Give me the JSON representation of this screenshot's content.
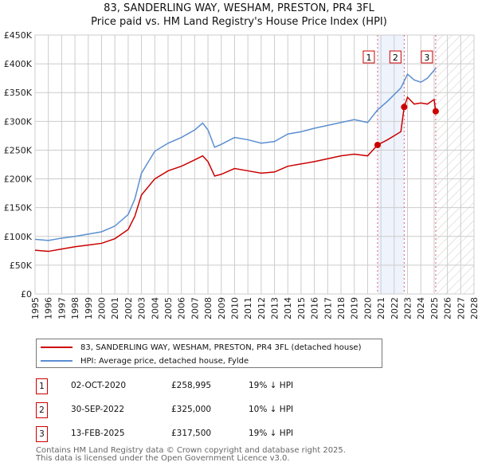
{
  "chart_data": {
    "type": "line",
    "title": "83, SANDERLING WAY, WESHAM, PRESTON, PR4 3FL",
    "subtitle": "Price paid vs. HM Land Registry's House Price Index (HPI)",
    "xlim": [
      1995,
      2028
    ],
    "ylim": [
      0,
      450000
    ],
    "yticks": [
      0,
      50000,
      100000,
      150000,
      200000,
      250000,
      300000,
      350000,
      400000,
      450000
    ],
    "ytick_labels": [
      "£0",
      "£50K",
      "£100K",
      "£150K",
      "£200K",
      "£250K",
      "£300K",
      "£350K",
      "£400K",
      "£450K"
    ],
    "xticks": [
      "1995",
      "1996",
      "1997",
      "1998",
      "1999",
      "2000",
      "2001",
      "2002",
      "2003",
      "2004",
      "2005",
      "2006",
      "2007",
      "2008",
      "2009",
      "2010",
      "2011",
      "2012",
      "2013",
      "2014",
      "2015",
      "2016",
      "2017",
      "2018",
      "2019",
      "2020",
      "2021",
      "2022",
      "2023",
      "2024",
      "2025",
      "2026",
      "2027",
      "2028"
    ],
    "grid": true,
    "series": [
      {
        "name": "83, SANDERLING WAY, WESHAM, PRESTON, PR4 3FL (detached house)",
        "color": "#cc0000",
        "x": [
          1995,
          1996,
          1997,
          1998,
          1999,
          2000,
          2001,
          2002,
          2002.5,
          2003,
          2004,
          2005,
          2006,
          2007,
          2007.6,
          2008,
          2008.5,
          2009,
          2010,
          2011,
          2012,
          2013,
          2014,
          2015,
          2016,
          2017,
          2018,
          2019,
          2020,
          2020.75,
          2021.5,
          2022.5,
          2022.75,
          2023,
          2023.5,
          2024,
          2024.5,
          2025.0,
          2025.12
        ],
        "y": [
          76000,
          74000,
          78000,
          82000,
          85000,
          88000,
          96000,
          112000,
          135000,
          172000,
          200000,
          214000,
          222000,
          233000,
          240000,
          230000,
          205000,
          208000,
          218000,
          214000,
          210000,
          212000,
          222000,
          226000,
          230000,
          235000,
          240000,
          243000,
          240000,
          258995,
          268000,
          282000,
          325000,
          342000,
          330000,
          332000,
          330000,
          338000,
          317500
        ]
      },
      {
        "name": "HPI: Average price, detached house, Fylde",
        "color": "#5b8fd0",
        "x": [
          1995,
          1996,
          1997,
          1998,
          1999,
          2000,
          2001,
          2002,
          2002.5,
          2003,
          2004,
          2005,
          2006,
          2007,
          2007.6,
          2008,
          2008.5,
          2009,
          2010,
          2011,
          2012,
          2013,
          2014,
          2015,
          2016,
          2017,
          2018,
          2019,
          2020,
          2020.75,
          2021.5,
          2022.5,
          2023,
          2023.5,
          2024,
          2024.5,
          2025.12
        ],
        "y": [
          95000,
          93000,
          97000,
          100000,
          104000,
          108000,
          118000,
          138000,
          165000,
          210000,
          248000,
          262000,
          272000,
          285000,
          297000,
          285000,
          255000,
          260000,
          272000,
          268000,
          262000,
          265000,
          278000,
          282000,
          288000,
          293000,
          298000,
          303000,
          298000,
          320000,
          335000,
          358000,
          382000,
          372000,
          368000,
          375000,
          392000
        ]
      }
    ],
    "sales": [
      {
        "label": "1",
        "x": 2020.75,
        "y": 258995
      },
      {
        "label": "2",
        "x": 2022.75,
        "y": 325000
      },
      {
        "label": "3",
        "x": 2025.12,
        "y": 317500
      }
    ]
  },
  "legend": {
    "property": "83, SANDERLING WAY, WESHAM, PRESTON, PR4 3FL (detached house)",
    "hpi": "HPI: Average price, detached house, Fylde"
  },
  "table": [
    {
      "n": "1",
      "date": "02-OCT-2020",
      "price": "£258,995",
      "hpi": "19% ↓ HPI"
    },
    {
      "n": "2",
      "date": "30-SEP-2022",
      "price": "£325,000",
      "hpi": "10% ↓ HPI"
    },
    {
      "n": "3",
      "date": "13-FEB-2025",
      "price": "£317,500",
      "hpi": "19% ↓ HPI"
    }
  ],
  "footer": {
    "line1": "Contains HM Land Registry data © Crown copyright and database right 2025.",
    "line2": "This data is licensed under the Open Government Licence v3.0."
  }
}
